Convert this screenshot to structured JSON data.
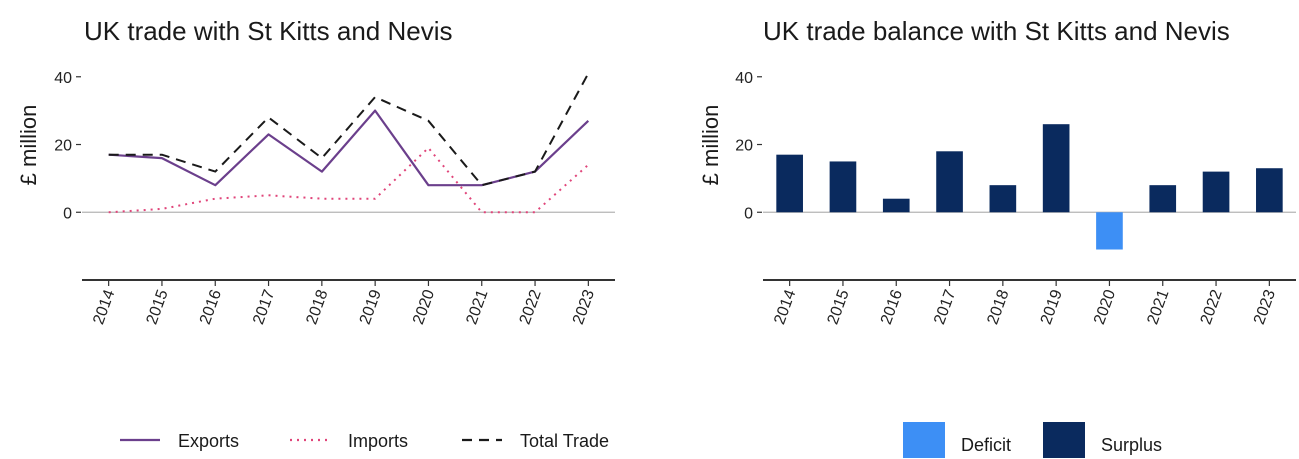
{
  "chart_data": [
    {
      "type": "line",
      "title": "UK trade with St Kitts and Nevis",
      "ylabel": "£ million",
      "xlabel": "",
      "x": [
        "2014",
        "2015",
        "2016",
        "2017",
        "2018",
        "2019",
        "2020",
        "2021",
        "2022",
        "2023"
      ],
      "ylim": [
        -20,
        42
      ],
      "yticks": [
        0,
        20,
        40
      ],
      "series": [
        {
          "name": "Exports",
          "values": [
            17,
            16,
            8,
            23,
            12,
            30,
            8,
            8,
            12,
            27
          ],
          "color": "#6b3f8c",
          "style": "solid"
        },
        {
          "name": "Imports",
          "values": [
            0,
            1,
            4,
            5,
            4,
            4,
            19,
            0,
            0,
            14
          ],
          "color": "#e0457a",
          "style": "dotted"
        },
        {
          "name": "Total Trade",
          "values": [
            17,
            17,
            12,
            28,
            16,
            34,
            27,
            8,
            12,
            41
          ],
          "color": "#1a1a1a",
          "style": "dashed"
        }
      ],
      "legend_position": "bottom",
      "grid": false
    },
    {
      "type": "bar",
      "title": "UK trade balance with St Kitts and Nevis",
      "ylabel": "£ million",
      "xlabel": "",
      "categories": [
        "2014",
        "2015",
        "2016",
        "2017",
        "2018",
        "2019",
        "2020",
        "2021",
        "2022",
        "2023"
      ],
      "values": [
        17,
        15,
        4,
        18,
        8,
        26,
        -11,
        8,
        12,
        13
      ],
      "ylim": [
        -20,
        42
      ],
      "yticks": [
        0,
        20,
        40
      ],
      "legend": [
        {
          "name": "Deficit",
          "color": "#3d8ff5"
        },
        {
          "name": "Surplus",
          "color": "#0a2a5e"
        }
      ],
      "legend_position": "bottom",
      "grid": false
    }
  ]
}
